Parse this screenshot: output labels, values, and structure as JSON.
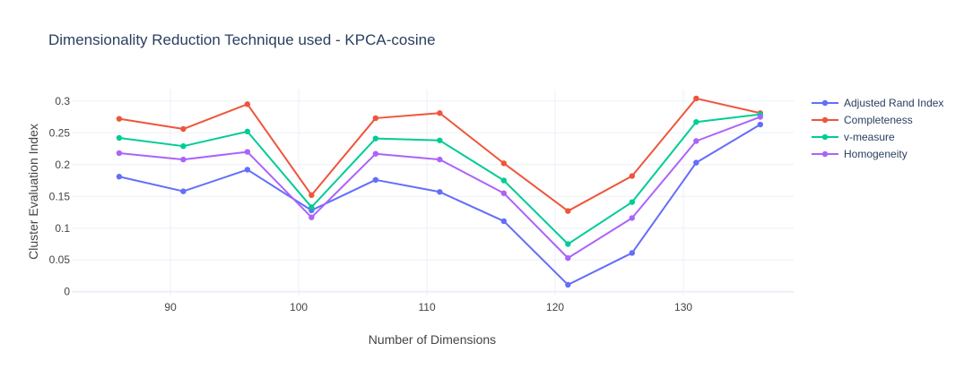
{
  "chart_data": {
    "type": "line",
    "title": "Dimensionality Reduction Technique used - KPCA-cosine",
    "xlabel": "Number of Dimensions",
    "ylabel": "Cluster Evaluation Index",
    "x": [
      86,
      91,
      96,
      101,
      106,
      111,
      116,
      121,
      126,
      131,
      136
    ],
    "xlim": [
      82.3,
      138.6
    ],
    "ylim": [
      -0.006,
      0.318
    ],
    "xticks": [
      90,
      100,
      110,
      120,
      130
    ],
    "yticks": [
      0,
      0.05,
      0.1,
      0.15,
      0.2,
      0.25,
      0.3
    ],
    "ytick_labels": [
      "0",
      "0.05",
      "0.1",
      "0.15",
      "0.2",
      "0.25",
      "0.3"
    ],
    "grid": true,
    "legend_position": "top-right",
    "series": [
      {
        "name": "Adjusted Rand Index",
        "color": "#636efa",
        "values": [
          0.181,
          0.158,
          0.192,
          0.128,
          0.176,
          0.157,
          0.111,
          0.011,
          0.061,
          0.203,
          0.263
        ]
      },
      {
        "name": "Completeness",
        "color": "#ef553b",
        "values": [
          0.272,
          0.256,
          0.295,
          0.152,
          0.273,
          0.281,
          0.202,
          0.127,
          0.182,
          0.304,
          0.281
        ]
      },
      {
        "name": "v-measure",
        "color": "#00cc96",
        "values": [
          0.242,
          0.229,
          0.252,
          0.133,
          0.241,
          0.238,
          0.175,
          0.075,
          0.141,
          0.267,
          0.279
        ]
      },
      {
        "name": "Homogeneity",
        "color": "#ab63fa",
        "values": [
          0.218,
          0.208,
          0.22,
          0.117,
          0.217,
          0.208,
          0.155,
          0.053,
          0.116,
          0.237,
          0.275
        ]
      }
    ]
  }
}
